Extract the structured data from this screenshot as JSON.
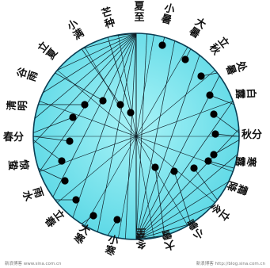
{
  "diagram": {
    "colors": {
      "disk": "#7de8f0",
      "disk_edge": "#0a3f55",
      "line": "#0f1f28",
      "dot": "#000000",
      "text": "#111111"
    },
    "solar_terms": [
      {
        "id": "xiazhi",
        "label": "夏至"
      },
      {
        "id": "xiaoshu",
        "label": "小暑"
      },
      {
        "id": "dashu",
        "label": "大暑"
      },
      {
        "id": "liqiu",
        "label": "立秋"
      },
      {
        "id": "chushu",
        "label": "处暑"
      },
      {
        "id": "bailu",
        "label": "白露"
      },
      {
        "id": "qiufen",
        "label": "秋分"
      },
      {
        "id": "hanlu",
        "label": "寒露"
      },
      {
        "id": "shuangjiang",
        "label": "霜降"
      },
      {
        "id": "lidong",
        "label": "立冬"
      },
      {
        "id": "xiaoxue",
        "label": "小雪"
      },
      {
        "id": "daxue",
        "label": "大雪"
      },
      {
        "id": "dongzhi",
        "label": "冬至"
      },
      {
        "id": "xiaohan",
        "label": "小寒"
      },
      {
        "id": "dahan",
        "label": "大寒"
      },
      {
        "id": "lichun",
        "label": "立春"
      },
      {
        "id": "yushui",
        "label": "雨水"
      },
      {
        "id": "jingzhe",
        "label": "惊蛰"
      },
      {
        "id": "chunfen",
        "label": "春分"
      },
      {
        "id": "qingming",
        "label": "清明"
      },
      {
        "id": "guyu",
        "label": "谷雨"
      },
      {
        "id": "lixia",
        "label": "立夏"
      },
      {
        "id": "xiaoman",
        "label": "小满"
      },
      {
        "id": "mangzhong",
        "label": "芒种"
      }
    ],
    "watermark_left": "新浪博客 www.sina.com.cn",
    "watermark_right": "新浪博客 http://blog.sina.com.cn"
  }
}
